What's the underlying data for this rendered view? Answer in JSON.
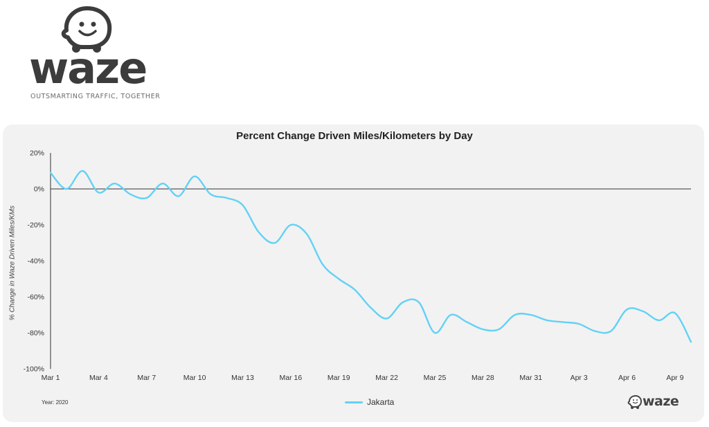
{
  "brand": {
    "wordmark": "waze",
    "tagline": "OUTSMARTING TRAFFIC, TOGETHER"
  },
  "colors": {
    "series": "#62d1f6",
    "logo_body": "#3c3c3c"
  },
  "footnote": "Year: 2020",
  "chart_data": {
    "type": "line",
    "title": "Percent Change Driven Miles/Kilometers by Day",
    "ylabel": "% Change in Waze Driven Miles/KMs",
    "xlabel": "",
    "ylim": [
      -100,
      20
    ],
    "yticks": [
      20,
      0,
      -20,
      -40,
      -60,
      -80,
      -100
    ],
    "ytick_labels": [
      "20%",
      "0%",
      "-20%",
      "-40%",
      "-60%",
      "-80%",
      "-100%"
    ],
    "x_range": [
      "2020-03-01",
      "2020-04-10"
    ],
    "x_ticks": [
      {
        "date": "2020-03-01",
        "label": "Mar 1"
      },
      {
        "date": "2020-03-04",
        "label": "Mar 4"
      },
      {
        "date": "2020-03-07",
        "label": "Mar 7"
      },
      {
        "date": "2020-03-10",
        "label": "Mar 10"
      },
      {
        "date": "2020-03-13",
        "label": "Mar 13"
      },
      {
        "date": "2020-03-16",
        "label": "Mar 16"
      },
      {
        "date": "2020-03-19",
        "label": "Mar 19"
      },
      {
        "date": "2020-03-22",
        "label": "Mar 22"
      },
      {
        "date": "2020-03-25",
        "label": "Mar 25"
      },
      {
        "date": "2020-03-28",
        "label": "Mar 28"
      },
      {
        "date": "2020-03-31",
        "label": "Mar 31"
      },
      {
        "date": "2020-04-03",
        "label": "Apr 3"
      },
      {
        "date": "2020-04-06",
        "label": "Apr 6"
      },
      {
        "date": "2020-04-09",
        "label": "Apr 9"
      }
    ],
    "legend_position": "bottom-center",
    "grid": false,
    "series": [
      {
        "name": "Jakarta",
        "points": [
          [
            "2020-03-01",
            9
          ],
          [
            "2020-03-02",
            0
          ],
          [
            "2020-03-03",
            10
          ],
          [
            "2020-03-04",
            -2
          ],
          [
            "2020-03-05",
            3
          ],
          [
            "2020-03-06",
            -3
          ],
          [
            "2020-03-07",
            -5
          ],
          [
            "2020-03-08",
            3
          ],
          [
            "2020-03-09",
            -4
          ],
          [
            "2020-03-10",
            7
          ],
          [
            "2020-03-11",
            -3
          ],
          [
            "2020-03-12",
            -5
          ],
          [
            "2020-03-13",
            -9
          ],
          [
            "2020-03-14",
            -24
          ],
          [
            "2020-03-15",
            -30
          ],
          [
            "2020-03-16",
            -20
          ],
          [
            "2020-03-17",
            -25
          ],
          [
            "2020-03-18",
            -42
          ],
          [
            "2020-03-19",
            -50
          ],
          [
            "2020-03-20",
            -56
          ],
          [
            "2020-03-21",
            -66
          ],
          [
            "2020-03-22",
            -72
          ],
          [
            "2020-03-23",
            -63
          ],
          [
            "2020-03-24",
            -63
          ],
          [
            "2020-03-25",
            -80
          ],
          [
            "2020-03-26",
            -70
          ],
          [
            "2020-03-27",
            -74
          ],
          [
            "2020-03-28",
            -78
          ],
          [
            "2020-03-29",
            -78
          ],
          [
            "2020-03-30",
            -70
          ],
          [
            "2020-03-31",
            -70
          ],
          [
            "2020-04-01",
            -73
          ],
          [
            "2020-04-02",
            -74
          ],
          [
            "2020-04-03",
            -75
          ],
          [
            "2020-04-04",
            -79
          ],
          [
            "2020-04-05",
            -79
          ],
          [
            "2020-04-06",
            -67
          ],
          [
            "2020-04-07",
            -68
          ],
          [
            "2020-04-08",
            -73
          ],
          [
            "2020-04-09",
            -69
          ],
          [
            "2020-04-10",
            -85
          ]
        ]
      }
    ]
  }
}
